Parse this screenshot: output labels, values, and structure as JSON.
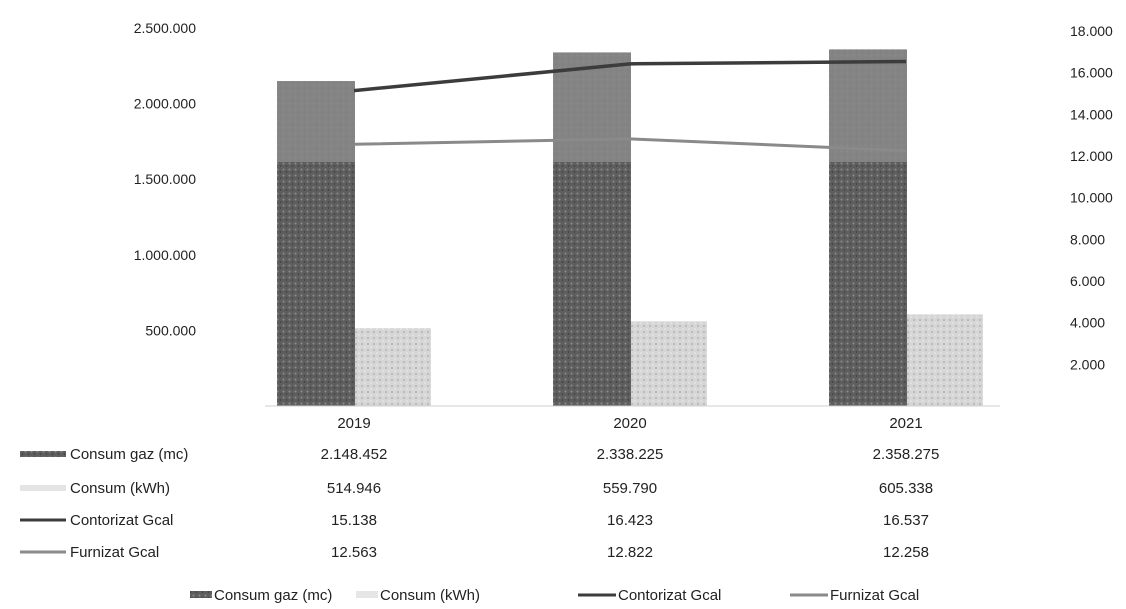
{
  "chart_data": {
    "type": "bar",
    "categories": [
      "2019",
      "2020",
      "2021"
    ],
    "series": [
      {
        "name": "Consum gaz (mc)",
        "kind": "bar",
        "axis": "left",
        "color": "#666666",
        "values": [
          2148452,
          2338225,
          2358275
        ]
      },
      {
        "name": "Consum (kWh)",
        "kind": "bar",
        "axis": "left",
        "color": "#c9c9c9",
        "values": [
          514946,
          559790,
          605338
        ]
      },
      {
        "name": "Contorizat Gcal",
        "kind": "line",
        "axis": "right",
        "color": "#3c3c3c",
        "values": [
          15138,
          16423,
          16537
        ]
      },
      {
        "name": "Furnizat Gcal",
        "kind": "line",
        "axis": "right",
        "color": "#8a8a8a",
        "values": [
          12563,
          12822,
          12258
        ]
      }
    ],
    "y_left": {
      "ylim": [
        0,
        2500000
      ],
      "ticks": [
        500000,
        1000000,
        1500000,
        2000000,
        2500000
      ],
      "tick_labels": [
        "500.000",
        "1.000.000",
        "1.500.000",
        "2.000.000",
        "2.500.000"
      ]
    },
    "y_right": {
      "ylim": [
        0,
        18000
      ],
      "ticks": [
        2000,
        4000,
        6000,
        8000,
        10000,
        12000,
        14000,
        16000,
        18000
      ],
      "tick_labels": [
        "2.000",
        "4.000",
        "6.000",
        "8.000",
        "10.000",
        "12.000",
        "14.000",
        "16.000",
        "18.000"
      ]
    },
    "data_table": {
      "rows": [
        {
          "label": "Consum gaz (mc)",
          "values": [
            "2.148.452",
            "2.338.225",
            "2.358.275"
          ]
        },
        {
          "label": "Consum (kWh)",
          "values": [
            "514.946",
            "559.790",
            "605.338"
          ]
        },
        {
          "label": "Contorizat Gcal",
          "values": [
            "15.138",
            "16.423",
            "16.537"
          ]
        },
        {
          "label": "Furnizat Gcal",
          "values": [
            "12.563",
            "12.822",
            "12.258"
          ]
        }
      ]
    },
    "legend": {
      "position": "bottom",
      "entries": [
        "Consum gaz (mc)",
        "Consum (kWh)",
        "Contorizat Gcal",
        "Furnizat Gcal"
      ]
    },
    "grid": false
  }
}
